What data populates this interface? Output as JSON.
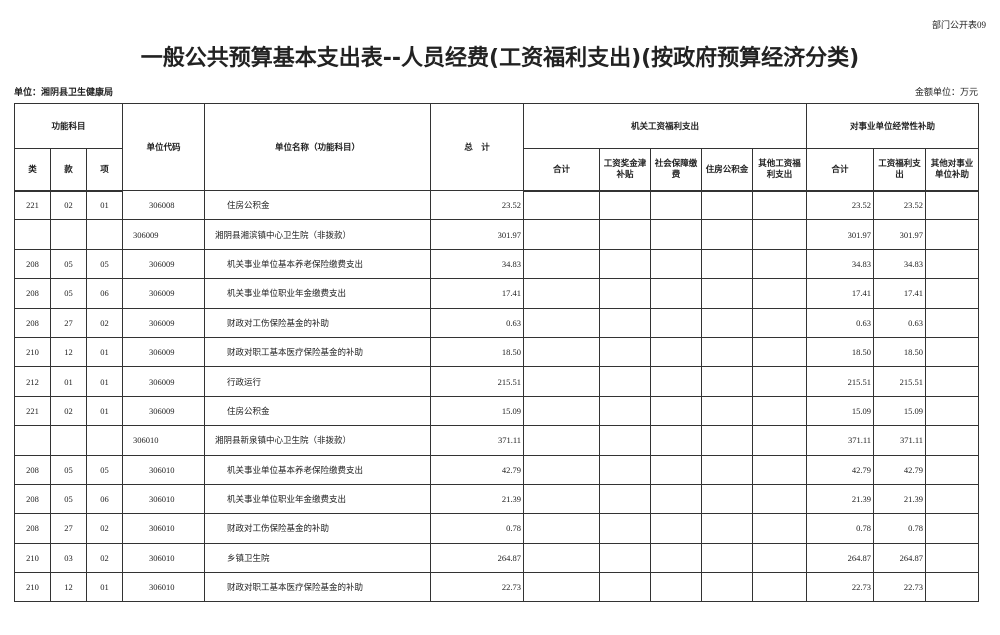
{
  "form_number": "部门公开表09",
  "title": "一般公共预算基本支出表--人员经费(工资福利支出)(按政府预算经济分类)",
  "unit_label": "单位：湘阴县卫生健康局",
  "money_unit": "金额单位：万元",
  "headers": {
    "func_subject": "功能科目",
    "lei": "类",
    "kuan": "款",
    "xiang": "项",
    "unit_code": "单位代码",
    "unit_name": "单位名称（功能科目）",
    "total": "总　计",
    "office_group": "机关工资福利支出",
    "office_cols": [
      "合计",
      "工资奖金津补贴",
      "社会保障缴费",
      "住房公积金",
      "其他工资福利支出"
    ],
    "inst_group": "对事业单位经常性补助",
    "inst_cols": [
      "合计",
      "工资福利支出",
      "其他对事业单位补助"
    ]
  },
  "rows": [
    {
      "lei": "221",
      "kuan": "02",
      "xiang": "01",
      "code": "306008",
      "name": "住房公积金",
      "total": "23.52",
      "o": [
        "",
        "",
        "",
        "",
        ""
      ],
      "i": [
        "23.52",
        "23.52",
        ""
      ],
      "unit": false
    },
    {
      "lei": "",
      "kuan": "",
      "xiang": "",
      "code": "306009",
      "name": "湘阴县湘滨镇中心卫生院（非拨款）",
      "total": "301.97",
      "o": [
        "",
        "",
        "",
        "",
        ""
      ],
      "i": [
        "301.97",
        "301.97",
        ""
      ],
      "unit": true
    },
    {
      "lei": "208",
      "kuan": "05",
      "xiang": "05",
      "code": "306009",
      "name": "机关事业单位基本养老保险缴费支出",
      "total": "34.83",
      "o": [
        "",
        "",
        "",
        "",
        ""
      ],
      "i": [
        "34.83",
        "34.83",
        ""
      ],
      "unit": false
    },
    {
      "lei": "208",
      "kuan": "05",
      "xiang": "06",
      "code": "306009",
      "name": "机关事业单位职业年金缴费支出",
      "total": "17.41",
      "o": [
        "",
        "",
        "",
        "",
        ""
      ],
      "i": [
        "17.41",
        "17.41",
        ""
      ],
      "unit": false
    },
    {
      "lei": "208",
      "kuan": "27",
      "xiang": "02",
      "code": "306009",
      "name": "财政对工伤保险基金的补助",
      "total": "0.63",
      "o": [
        "",
        "",
        "",
        "",
        ""
      ],
      "i": [
        "0.63",
        "0.63",
        ""
      ],
      "unit": false
    },
    {
      "lei": "210",
      "kuan": "12",
      "xiang": "01",
      "code": "306009",
      "name": "财政对职工基本医疗保险基金的补助",
      "total": "18.50",
      "o": [
        "",
        "",
        "",
        "",
        ""
      ],
      "i": [
        "18.50",
        "18.50",
        ""
      ],
      "unit": false
    },
    {
      "lei": "212",
      "kuan": "01",
      "xiang": "01",
      "code": "306009",
      "name": "行政运行",
      "total": "215.51",
      "o": [
        "",
        "",
        "",
        "",
        ""
      ],
      "i": [
        "215.51",
        "215.51",
        ""
      ],
      "unit": false
    },
    {
      "lei": "221",
      "kuan": "02",
      "xiang": "01",
      "code": "306009",
      "name": "住房公积金",
      "total": "15.09",
      "o": [
        "",
        "",
        "",
        "",
        ""
      ],
      "i": [
        "15.09",
        "15.09",
        ""
      ],
      "unit": false
    },
    {
      "lei": "",
      "kuan": "",
      "xiang": "",
      "code": "306010",
      "name": "湘阴县新泉镇中心卫生院（非拨款）",
      "total": "371.11",
      "o": [
        "",
        "",
        "",
        "",
        ""
      ],
      "i": [
        "371.11",
        "371.11",
        ""
      ],
      "unit": true
    },
    {
      "lei": "208",
      "kuan": "05",
      "xiang": "05",
      "code": "306010",
      "name": "机关事业单位基本养老保险缴费支出",
      "total": "42.79",
      "o": [
        "",
        "",
        "",
        "",
        ""
      ],
      "i": [
        "42.79",
        "42.79",
        ""
      ],
      "unit": false
    },
    {
      "lei": "208",
      "kuan": "05",
      "xiang": "06",
      "code": "306010",
      "name": "机关事业单位职业年金缴费支出",
      "total": "21.39",
      "o": [
        "",
        "",
        "",
        "",
        ""
      ],
      "i": [
        "21.39",
        "21.39",
        ""
      ],
      "unit": false
    },
    {
      "lei": "208",
      "kuan": "27",
      "xiang": "02",
      "code": "306010",
      "name": "财政对工伤保险基金的补助",
      "total": "0.78",
      "o": [
        "",
        "",
        "",
        "",
        ""
      ],
      "i": [
        "0.78",
        "0.78",
        ""
      ],
      "unit": false
    },
    {
      "lei": "210",
      "kuan": "03",
      "xiang": "02",
      "code": "306010",
      "name": "乡镇卫生院",
      "total": "264.87",
      "o": [
        "",
        "",
        "",
        "",
        ""
      ],
      "i": [
        "264.87",
        "264.87",
        ""
      ],
      "unit": false
    },
    {
      "lei": "210",
      "kuan": "12",
      "xiang": "01",
      "code": "306010",
      "name": "财政对职工基本医疗保险基金的补助",
      "total": "22.73",
      "o": [
        "",
        "",
        "",
        "",
        ""
      ],
      "i": [
        "22.73",
        "22.73",
        ""
      ],
      "unit": false
    }
  ]
}
